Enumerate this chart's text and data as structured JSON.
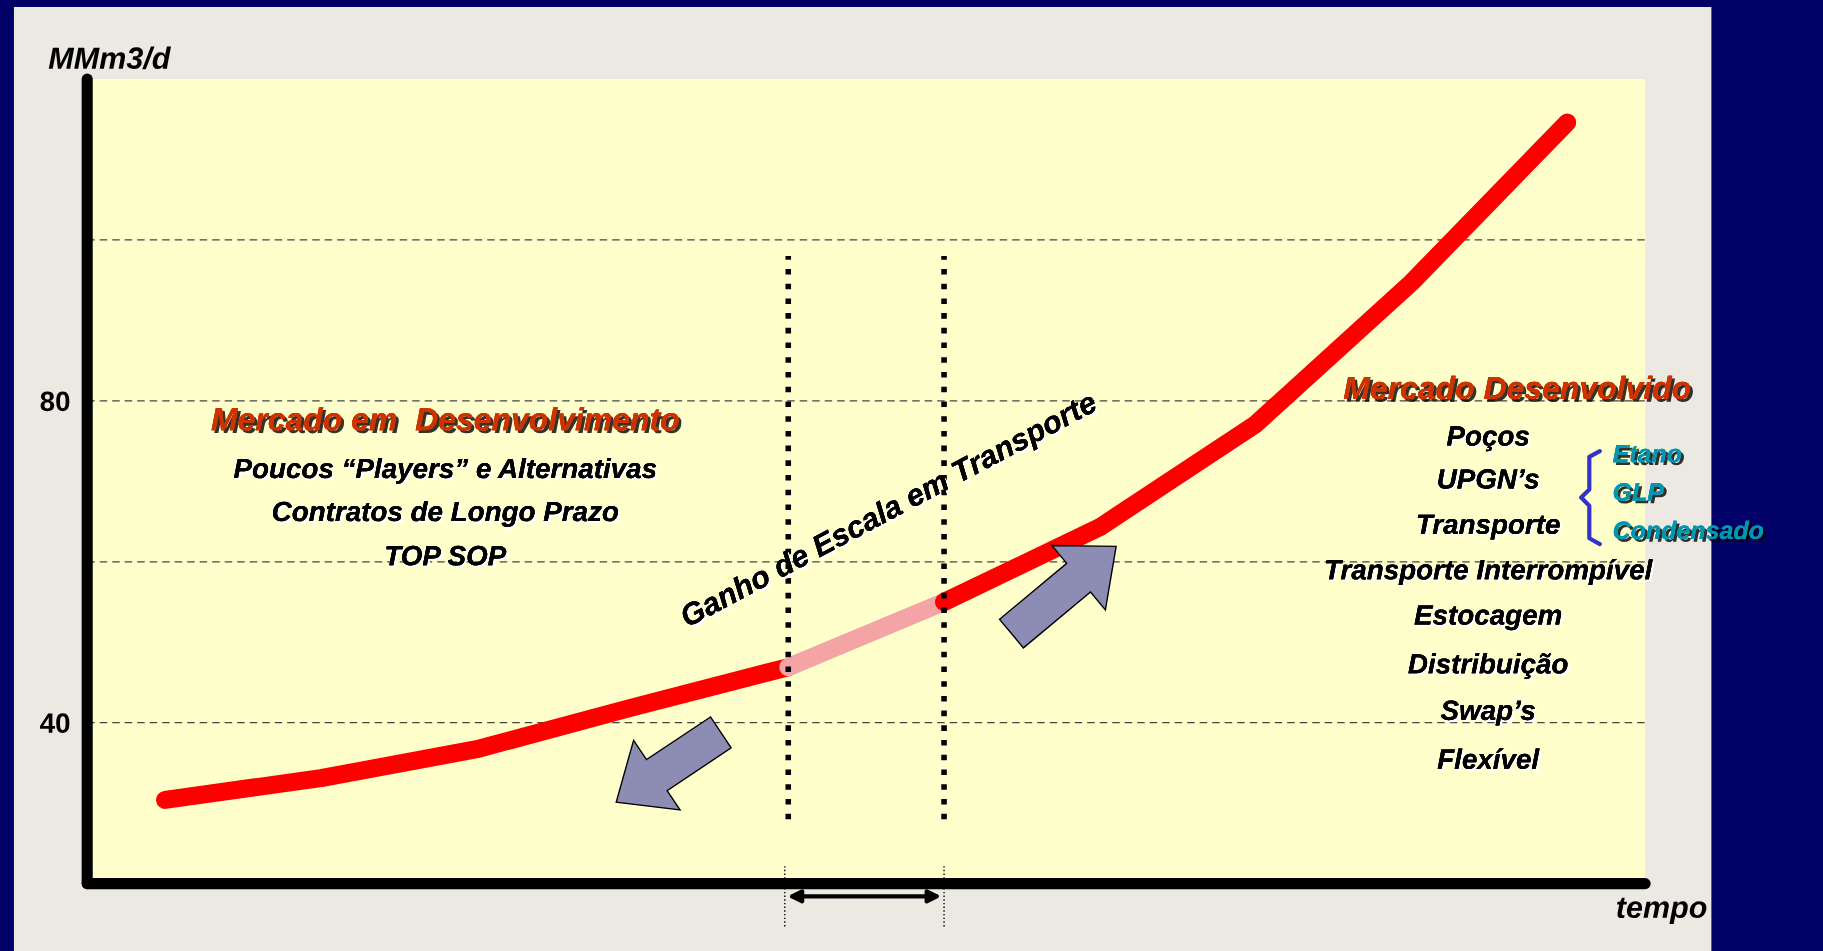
{
  "chart_data": {
    "type": "line",
    "ylabel": "MMm3/d",
    "xlabel": "tempo",
    "categories": [
      null,
      null,
      null,
      null,
      null,
      null,
      null,
      null,
      null,
      null
    ],
    "series": [
      {
        "color": "#ff0000",
        "values": [
          30.4,
          33.1,
          36.7,
          41.9,
          46.9,
          null,
          null,
          null,
          null,
          null
        ]
      },
      {
        "color": "#f4a4a4",
        "values": [
          null,
          null,
          null,
          null,
          46.9,
          55,
          null,
          null,
          null,
          null
        ]
      },
      {
        "color": "#ff0000",
        "values": [
          null,
          null,
          null,
          null,
          null,
          55,
          64.3,
          77.1,
          94.7,
          114.6
        ]
      }
    ],
    "ylim": [
      20,
      120
    ],
    "yticks": [
      40,
      {
        "value": 60,
        "label": null
      },
      80,
      {
        "value": 100,
        "label": null
      }
    ],
    "grid": "y",
    "line_style": "solid",
    "tick_labels": "y",
    "annotations": [
      "Mercado em  Desenvolvimento",
      "Poucos “Players” e Alternativas",
      "Contratos de Longo Prazo",
      "TOP SOP",
      "Ganho de Escala em Transporte",
      "Mercado Desenvolvido",
      "Poços",
      "UPGN’s",
      "Transporte",
      "Etano",
      "GLP",
      "Condensado",
      "Transporte Interrompível",
      "Estocagem",
      "Distribuição",
      "Swap’s",
      "Flexível"
    ]
  }
}
